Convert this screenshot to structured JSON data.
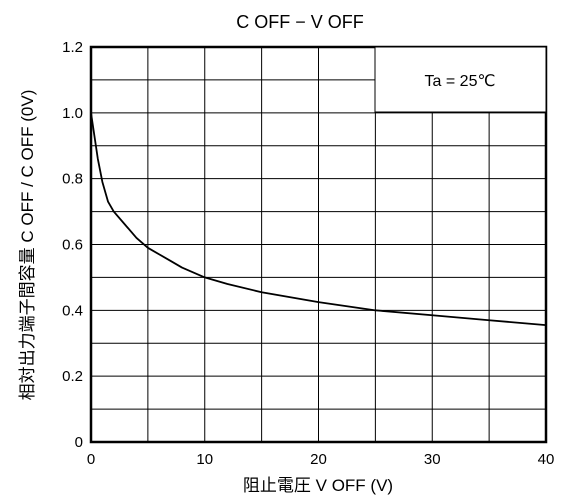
{
  "chart_data": {
    "type": "line",
    "title": "C OFF − V OFF",
    "xlabel": "阻止電圧  V OFF (V)",
    "ylabel": "相対出力端子間容量  C OFF / C OFF (0V)",
    "xlim": [
      0,
      40
    ],
    "ylim": [
      0,
      1.2
    ],
    "x_ticks": [
      "0",
      "10",
      "20",
      "30",
      "40"
    ],
    "y_ticks": [
      "0",
      "0.2",
      "0.4",
      "0.6",
      "0.8",
      "1.0",
      "1.2"
    ],
    "grid": true,
    "annotation": "Ta = 25℃",
    "series": [
      {
        "color": "#000000",
        "x": [
          0,
          0.3,
          0.6,
          1.0,
          1.5,
          2.0,
          3.0,
          4.0,
          5.0,
          6.0,
          7.0,
          8.0,
          10.0,
          12.0,
          15.0,
          20.0,
          25.0,
          30.0,
          35.0,
          40.0
        ],
        "y": [
          1.0,
          0.93,
          0.86,
          0.79,
          0.73,
          0.7,
          0.66,
          0.62,
          0.59,
          0.57,
          0.55,
          0.53,
          0.5,
          0.48,
          0.455,
          0.425,
          0.4,
          0.385,
          0.37,
          0.355
        ]
      }
    ]
  }
}
